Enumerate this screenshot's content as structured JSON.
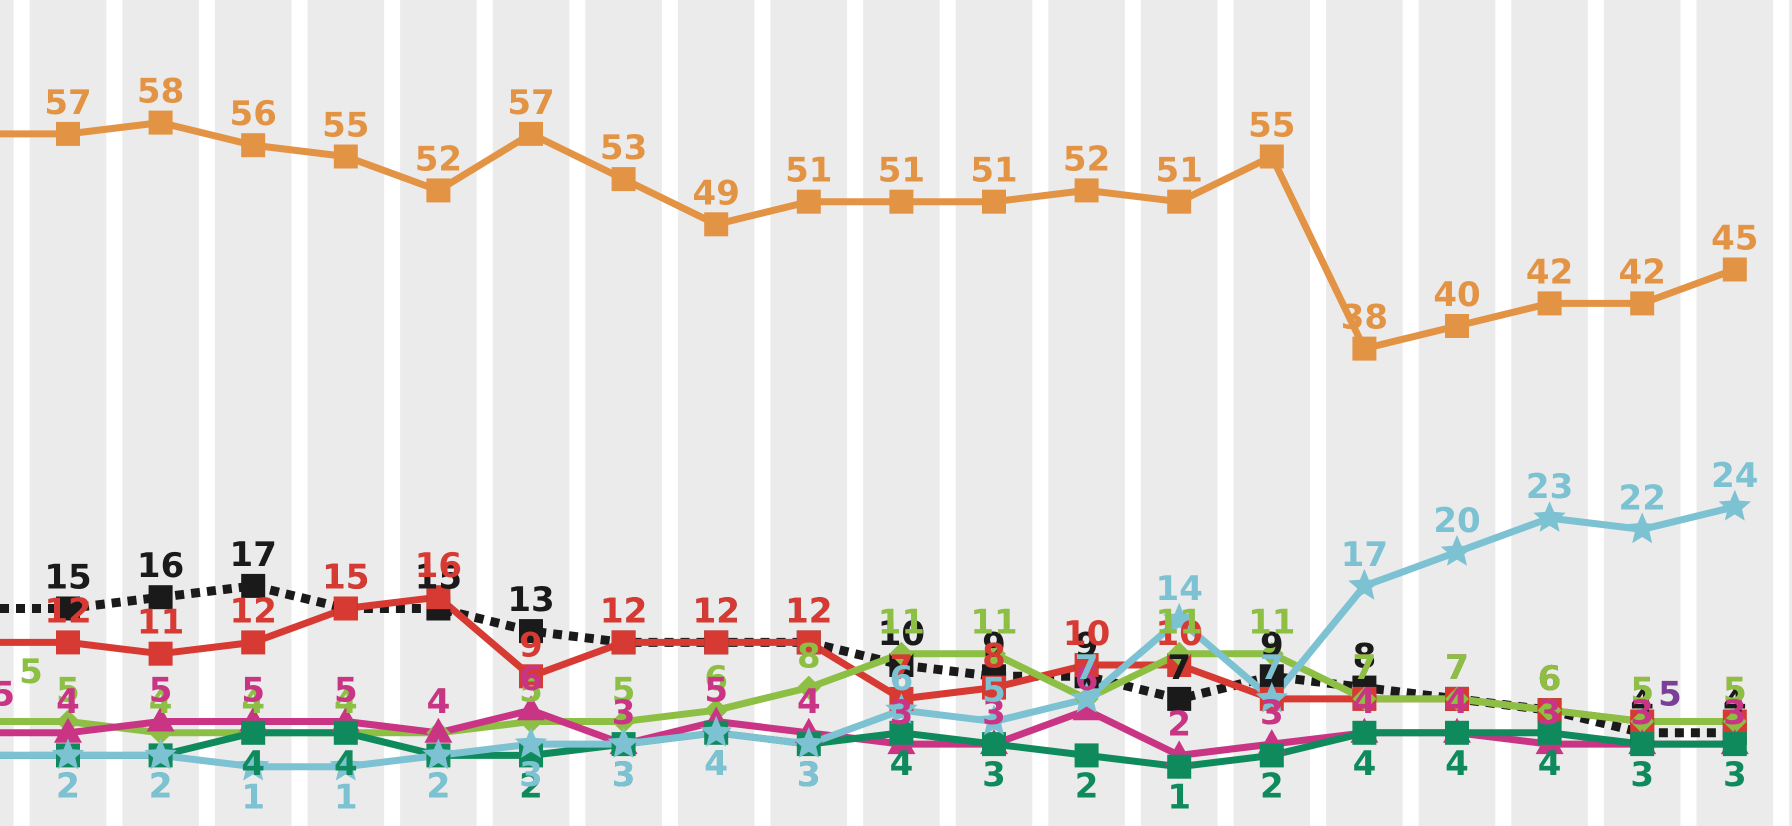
{
  "chart_data": {
    "type": "line",
    "ylim": [
      0,
      65
    ],
    "grid": "alternating vertical bands",
    "x_positions": 20,
    "series": [
      {
        "color": "#E39344",
        "marker": "square",
        "line": "solid",
        "values": [
          57,
          58,
          56,
          55,
          52,
          57,
          53,
          49,
          51,
          51,
          51,
          52,
          51,
          55,
          38,
          40,
          42,
          42,
          45
        ],
        "labels": [
          "57",
          "58",
          "56",
          "55",
          "52",
          "57",
          "53",
          "49",
          "51",
          "51",
          "51",
          "52",
          "51",
          "55",
          "38",
          "40",
          "42",
          "42",
          "45"
        ]
      },
      {
        "color": "#1A1A1A",
        "marker": "square",
        "line": "dotted",
        "values": [
          15,
          16,
          17,
          15,
          15,
          13,
          12,
          12,
          12,
          10,
          9,
          9,
          7,
          9,
          8,
          7,
          6,
          4,
          4
        ],
        "labels": [
          "15",
          "16",
          "17",
          "15",
          "15",
          "13",
          "12",
          "12",
          "12",
          "10",
          "9",
          "9",
          "7",
          "9",
          "8",
          "7",
          "6",
          "4",
          "4"
        ]
      },
      {
        "color": "#D63A33",
        "marker": "square",
        "line": "solid",
        "values": [
          12,
          11,
          12,
          15,
          16,
          9,
          12,
          12,
          12,
          7,
          8,
          10,
          10,
          7,
          7,
          7,
          6,
          5,
          5
        ],
        "labels": [
          "12",
          "11",
          "12",
          "15",
          "16",
          "9",
          "12",
          "12",
          "12",
          "7",
          "8",
          "10",
          "10",
          "7",
          "7",
          "7",
          "6",
          "5",
          "5"
        ]
      },
      {
        "color": "#8DBF45",
        "marker": "diamond",
        "line": "solid",
        "values": [
          5,
          4,
          4,
          4,
          4,
          5,
          5,
          6,
          8,
          11,
          11,
          7,
          11,
          11,
          7,
          7,
          6,
          5,
          5
        ],
        "labels": [
          "5",
          "4",
          "4",
          "4",
          "4",
          "5",
          "5",
          "6",
          "8",
          "11",
          "11",
          "7",
          "11",
          "11",
          "7",
          "7",
          "6",
          "5",
          "5"
        ]
      },
      {
        "color": "#C93584",
        "marker": "triangle",
        "line": "solid",
        "values": [
          4,
          5,
          5,
          5,
          4,
          6,
          3,
          5,
          4,
          3,
          3,
          6,
          2,
          3,
          4,
          4,
          3,
          3,
          3
        ],
        "labels": [
          "4",
          "5",
          "5",
          "5",
          "4",
          "6",
          "3",
          "5",
          "4",
          "3",
          "3",
          "6",
          "2",
          "3",
          "4",
          "4",
          "3",
          "3",
          "3"
        ]
      },
      {
        "color": "#0E8A5C",
        "marker": "square",
        "line": "solid",
        "values": [
          2,
          2,
          4,
          4,
          2,
          2,
          3,
          4,
          3,
          4,
          3,
          2,
          1,
          2,
          4,
          4,
          4,
          3,
          3
        ],
        "labels": [
          "2",
          "2",
          "4",
          "4",
          "2",
          "2",
          "3",
          "4",
          "3",
          "4",
          "3",
          "2",
          "1",
          "2",
          "4",
          "4",
          "4",
          "3",
          "3"
        ]
      },
      {
        "color": "#7CC2D2",
        "marker": "star",
        "line": "solid",
        "values": [
          2,
          2,
          1,
          1,
          2,
          3,
          3,
          4,
          3,
          6,
          5,
          7,
          14,
          7,
          17,
          20,
          23,
          22,
          24
        ],
        "labels": [
          "2",
          "2",
          "1",
          "1",
          "2",
          "3",
          "3",
          "4",
          "3",
          "6",
          "5",
          "7",
          "14",
          "7",
          "17",
          "20",
          "23",
          "22",
          "24"
        ]
      }
    ],
    "extra_labels": [
      {
        "text": "5",
        "color": "#C93584",
        "x_index": -0.7,
        "y": 5
      },
      {
        "text": "5",
        "color": "#8DBF45",
        "x_index": -0.4,
        "y": 7
      },
      {
        "text": "5",
        "color": "#7A3F96",
        "x_index": 17.3,
        "y": 5
      }
    ]
  }
}
